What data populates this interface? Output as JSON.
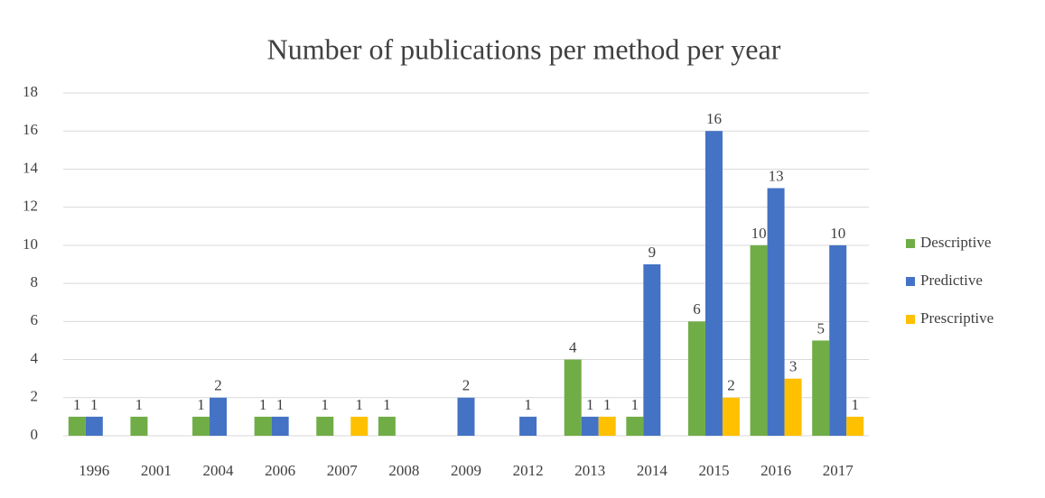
{
  "chart_data": {
    "type": "bar",
    "title": "Number of publications per method per year",
    "categories": [
      "1996",
      "2001",
      "2004",
      "2006",
      "2007",
      "2008",
      "2009",
      "2012",
      "2013",
      "2014",
      "2015",
      "2016",
      "2017"
    ],
    "series": [
      {
        "name": "Descriptive",
        "color": "#70ad47",
        "values": [
          1,
          1,
          1,
          1,
          1,
          1,
          null,
          null,
          4,
          1,
          6,
          10,
          5
        ]
      },
      {
        "name": "Predictive",
        "color": "#4472c4",
        "values": [
          1,
          null,
          2,
          1,
          null,
          null,
          2,
          1,
          1,
          9,
          16,
          13,
          10
        ]
      },
      {
        "name": "Prescriptive",
        "color": "#ffc000",
        "values": [
          null,
          null,
          null,
          null,
          1,
          null,
          null,
          null,
          1,
          null,
          2,
          3,
          1
        ]
      }
    ],
    "ylim": [
      0,
      18
    ],
    "yticks": [
      0,
      2,
      4,
      6,
      8,
      10,
      12,
      14,
      16,
      18
    ],
    "grid": true,
    "legend": "right"
  }
}
